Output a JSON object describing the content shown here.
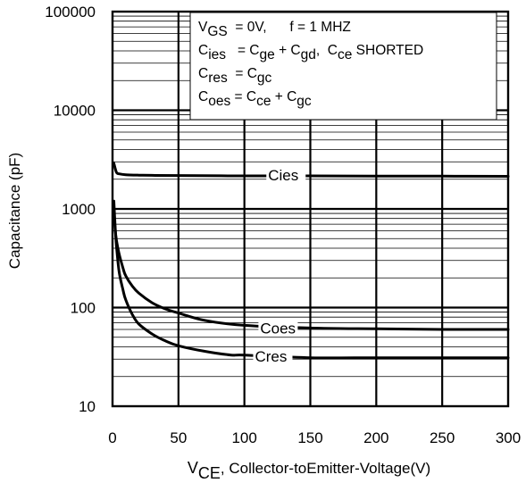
{
  "chart_data": {
    "type": "line",
    "y_scale": "log",
    "grid": true,
    "xlim": [
      0,
      300
    ],
    "ylim": [
      10,
      100000
    ],
    "x_ticks": [
      "0",
      "50",
      "100",
      "150",
      "200",
      "250",
      "300"
    ],
    "y_ticks": [
      "10",
      "100",
      "1000",
      "10000",
      "100000"
    ],
    "ylabel": "Capacitance (pF)",
    "xlabel": {
      "prefix": "V",
      "sub": "CE",
      "rest": ", Collector-toEmitter-Voltage(V)"
    },
    "annotation_lines": [
      [
        {
          "t": "V"
        },
        {
          "t": "GS",
          "sub": true
        },
        {
          "t": "  = 0V,      f = 1 MHZ"
        }
      ],
      [
        {
          "t": "C"
        },
        {
          "t": "ies",
          "sub": true
        },
        {
          "t": "   = C"
        },
        {
          "t": "ge",
          "sub": true
        },
        {
          "t": " + C"
        },
        {
          "t": "gd",
          "sub": true
        },
        {
          "t": ",  C"
        },
        {
          "t": "ce",
          "sub": true
        },
        {
          "t": " SHORTED"
        }
      ],
      [
        {
          "t": "C"
        },
        {
          "t": "res",
          "sub": true
        },
        {
          "t": "  = C"
        },
        {
          "t": "gc",
          "sub": true
        }
      ],
      [
        {
          "t": "C"
        },
        {
          "t": "oes",
          "sub": true
        },
        {
          "t": " = C"
        },
        {
          "t": "ce",
          "sub": true
        },
        {
          "t": " + C"
        },
        {
          "t": "gc",
          "sub": true
        }
      ]
    ],
    "series": [
      {
        "name": "Cies",
        "x": [
          1,
          3,
          5,
          10,
          20,
          30,
          50,
          100,
          150,
          200,
          250,
          300
        ],
        "values": [
          2900,
          2350,
          2270,
          2220,
          2200,
          2190,
          2180,
          2160,
          2160,
          2150,
          2150,
          2140
        ]
      },
      {
        "name": "Coes",
        "x": [
          1,
          2,
          3,
          5,
          8,
          10,
          15,
          20,
          30,
          40,
          50,
          70,
          100,
          150,
          200,
          250,
          300
        ],
        "values": [
          900,
          620,
          480,
          350,
          250,
          210,
          165,
          140,
          112,
          97,
          88,
          74,
          66,
          62,
          61,
          60,
          60
        ]
      },
      {
        "name": "Cres",
        "x": [
          1,
          2,
          3,
          5,
          8,
          10,
          15,
          20,
          30,
          40,
          50,
          70,
          90,
          100,
          150,
          200,
          250,
          300
        ],
        "values": [
          1200,
          650,
          420,
          230,
          150,
          120,
          85,
          68,
          54,
          46,
          41,
          36,
          33,
          33,
          31,
          31,
          31,
          31
        ]
      }
    ]
  }
}
